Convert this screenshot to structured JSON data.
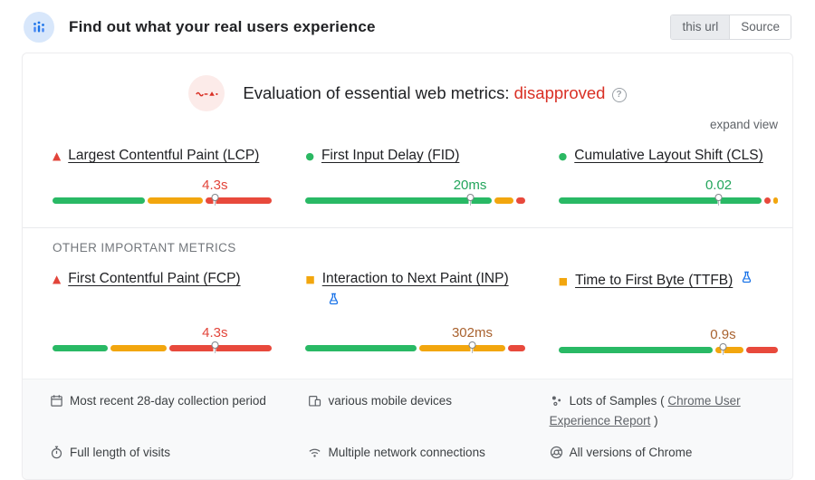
{
  "header": {
    "icon": "real-users-chart-icon",
    "title": "Find out what your real users experience",
    "buttons": [
      {
        "label": "this url",
        "active": true
      },
      {
        "label": "Source",
        "active": false
      }
    ]
  },
  "evaluation": {
    "icon": "sparkline-fail-icon",
    "text_prefix": "Evaluation of essential web metrics: ",
    "status": "disapproved",
    "help_icon": "help-icon",
    "expand_label": "expand view"
  },
  "colors": {
    "good": "#23a55c",
    "average": "#f2a60e",
    "poor": "#e2443a",
    "status_red": "#d93025",
    "bar_green": "#29b965",
    "bar_orange": "#f2a60e",
    "bar_red": "#e8493c",
    "flask_blue": "#1a73e8"
  },
  "core_metrics": [
    {
      "id": "lcp",
      "shape": "triangle",
      "shape_color": "#e2443a",
      "title": "Largest Contentful Paint (LCP)",
      "value": "4.3s",
      "value_color": "#e2443a",
      "marker_pct": 74,
      "segments": [
        {
          "color": "#29b965",
          "pct": 43
        },
        {
          "color": "#f2a60e",
          "pct": 26
        },
        {
          "color": "#e8493c",
          "pct": 31
        }
      ],
      "flask": "none",
      "flask_slot": false
    },
    {
      "id": "fid",
      "shape": "circle",
      "shape_color": "#2bb862",
      "title": "First Input Delay (FID)",
      "value": "20ms",
      "value_color": "#23a55c",
      "marker_pct": 75,
      "segments": [
        {
          "color": "#29b965",
          "pct": 87
        },
        {
          "color": "#f2a60e",
          "pct": 9
        },
        {
          "color": "#e8493c",
          "pct": 4
        }
      ],
      "flask": "none",
      "flask_slot": false
    },
    {
      "id": "cls",
      "shape": "circle",
      "shape_color": "#2bb862",
      "title": "Cumulative Layout Shift (CLS)",
      "value": "0.02",
      "value_color": "#23a55c",
      "marker_pct": 73,
      "segments": [
        {
          "color": "#29b965",
          "pct": 95
        },
        {
          "color": "#e8493c",
          "pct": 3
        },
        {
          "color": "#f2a60e",
          "pct": 2
        }
      ],
      "flask": "none",
      "flask_slot": false
    }
  ],
  "other_metrics_label": "OTHER IMPORTANT METRICS",
  "other_metrics": [
    {
      "id": "fcp",
      "shape": "triangle",
      "shape_color": "#e2443a",
      "title": "First Contentful Paint (FCP)",
      "value": "4.3s",
      "value_color": "#e2443a",
      "marker_pct": 74,
      "segments": [
        {
          "color": "#29b965",
          "pct": 26
        },
        {
          "color": "#f2a60e",
          "pct": 26
        },
        {
          "color": "#e8493c",
          "pct": 48
        }
      ],
      "flask": "none",
      "flask_slot": true
    },
    {
      "id": "inp",
      "shape": "square",
      "shape_color": "#f2a60e",
      "title": "Interaction to Next Paint (INP)",
      "value": "302ms",
      "value_color": "#a9622f",
      "marker_pct": 76,
      "segments": [
        {
          "color": "#29b965",
          "pct": 52
        },
        {
          "color": "#f2a60e",
          "pct": 40
        },
        {
          "color": "#e8493c",
          "pct": 8
        }
      ],
      "flask": "below",
      "flask_slot": true
    },
    {
      "id": "ttfb",
      "shape": "square",
      "shape_color": "#f2a60e",
      "title": "Time to First Byte (TTFB)",
      "value": "0.9s",
      "value_color": "#a9622f",
      "marker_pct": 75,
      "segments": [
        {
          "color": "#29b965",
          "pct": 72
        },
        {
          "color": "#f2a60e",
          "pct": 13
        },
        {
          "color": "#e8493c",
          "pct": 15
        }
      ],
      "flask": "inline",
      "flask_slot": true
    }
  ],
  "footer": {
    "items": [
      {
        "icon": "calendar-icon",
        "text": "Most recent 28-day collection period"
      },
      {
        "icon": "devices-icon",
        "text": "various mobile devices"
      },
      {
        "icon": "samples-icon",
        "text_before": "Lots of Samples ( ",
        "link_text": "Chrome User Experience Report",
        "text_after": " )"
      },
      {
        "icon": "stopwatch-icon",
        "text": "Full length of visits"
      },
      {
        "icon": "network-icon",
        "text": "Multiple network connections"
      },
      {
        "icon": "chrome-icon",
        "text": "All versions of Chrome"
      }
    ]
  }
}
